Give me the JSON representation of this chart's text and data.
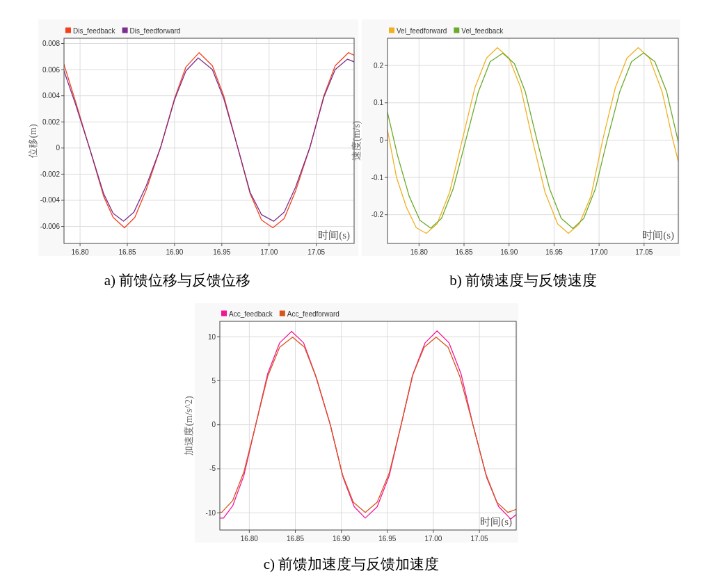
{
  "chart_data": [
    {
      "type": "line",
      "title": "a)  前馈位移与反馈位移",
      "xlabel": "时间(s)",
      "ylabel": "位移(m)",
      "xlim": [
        16.783,
        17.09
      ],
      "ylim": [
        -0.0073,
        0.0084
      ],
      "xticks": [
        {
          "value": 16.8,
          "label": "16.80"
        },
        {
          "value": 16.85,
          "label": "16.85"
        },
        {
          "value": 16.9,
          "label": "16.90"
        },
        {
          "value": 16.95,
          "label": "16.95"
        },
        {
          "value": 17.0,
          "label": "17.00"
        },
        {
          "value": 17.05,
          "label": "17.05"
        }
      ],
      "yticks": [
        -0.006,
        -0.004,
        -0.002,
        0,
        0.002,
        0.004,
        0.006,
        0.008
      ],
      "grid": true,
      "legend": "top left",
      "marker": "none",
      "line_style": "solid",
      "series": [
        {
          "name": "Dis_feedback",
          "color": "#f4401c",
          "x": [
            16.783,
            16.795,
            16.81,
            16.825,
            16.835,
            16.847,
            16.858,
            16.87,
            16.885,
            16.9,
            16.912,
            16.926,
            16.94,
            16.952,
            16.967,
            16.98,
            16.992,
            17.004,
            17.016,
            17.028,
            17.043,
            17.058,
            17.07,
            17.084,
            17.09
          ],
          "values": [
            0.0064,
            0.0036,
            0,
            -0.0037,
            -0.0053,
            -0.0061,
            -0.0053,
            -0.0032,
            0,
            0.0038,
            0.0062,
            0.0073,
            0.0063,
            0.004,
            0,
            -0.0035,
            -0.0055,
            -0.0061,
            -0.0054,
            -0.0033,
            0,
            0.004,
            0.0063,
            0.0073,
            0.0071
          ]
        },
        {
          "name": "Dis_feedforward",
          "color": "#7b2e8e",
          "x": [
            16.783,
            16.795,
            16.81,
            16.825,
            16.835,
            16.846,
            16.857,
            16.87,
            16.885,
            16.9,
            16.912,
            16.925,
            16.94,
            16.952,
            16.967,
            16.98,
            16.992,
            17.005,
            17.016,
            17.028,
            17.043,
            17.058,
            17.07,
            17.083,
            17.09
          ],
          "values": [
            0.0059,
            0.0034,
            0,
            -0.0035,
            -0.005,
            -0.0056,
            -0.0049,
            -0.0029,
            0,
            0.0037,
            0.0059,
            0.0069,
            0.006,
            0.0038,
            0,
            -0.0034,
            -0.0051,
            -0.0056,
            -0.0049,
            -0.003,
            0,
            0.0039,
            0.006,
            0.0068,
            0.0066
          ]
        }
      ]
    },
    {
      "type": "line",
      "title": "b)  前馈速度与反馈速度",
      "xlabel": "时间(s)",
      "ylabel": "速度(m/s)",
      "xlim": [
        16.765,
        17.088
      ],
      "ylim": [
        -0.277,
        0.273
      ],
      "xticks": [
        {
          "value": 16.8,
          "label": "16.80"
        },
        {
          "value": 16.85,
          "label": "16.85"
        },
        {
          "value": 16.9,
          "label": "16.90"
        },
        {
          "value": 16.95,
          "label": "16.95"
        },
        {
          "value": 17.0,
          "label": "17.00"
        },
        {
          "value": 17.05,
          "label": "17.05"
        }
      ],
      "yticks": [
        -0.2,
        -0.1,
        0,
        0.1,
        0.2
      ],
      "grid": true,
      "legend": "top left",
      "marker": "none",
      "line_style": "solid",
      "series": [
        {
          "name": "Vel_feedforward",
          "color": "#f0b020",
          "x": [
            16.765,
            16.775,
            16.786,
            16.797,
            16.808,
            16.82,
            16.834,
            16.848,
            16.862,
            16.875,
            16.887,
            16.9,
            16.913,
            16.926,
            16.94,
            16.954,
            16.966,
            16.978,
            16.991,
            17.004,
            17.018,
            17.031,
            17.0435,
            17.056,
            17.07,
            17.082,
            17.088
          ],
          "values": [
            0.027,
            -0.1,
            -0.18,
            -0.235,
            -0.25,
            -0.225,
            -0.14,
            0,
            0.14,
            0.22,
            0.248,
            0.22,
            0.14,
            0,
            -0.14,
            -0.225,
            -0.25,
            -0.225,
            -0.15,
            0,
            0.14,
            0.22,
            0.248,
            0.22,
            0.13,
            0,
            -0.057
          ]
        },
        {
          "name": "Vel_feedback",
          "color": "#6aaa2a",
          "x": [
            16.765,
            16.776,
            16.789,
            16.801,
            16.813,
            16.825,
            16.838,
            16.852,
            16.866,
            16.879,
            16.893,
            16.906,
            16.918,
            16.931,
            16.945,
            16.958,
            16.971,
            16.983,
            16.996,
            17.009,
            17.023,
            17.036,
            17.0495,
            17.062,
            17.075,
            17.088
          ],
          "values": [
            0.074,
            -0.04,
            -0.15,
            -0.215,
            -0.236,
            -0.21,
            -0.13,
            0,
            0.13,
            0.21,
            0.233,
            0.205,
            0.13,
            0,
            -0.13,
            -0.21,
            -0.237,
            -0.21,
            -0.13,
            0,
            0.13,
            0.21,
            0.234,
            0.21,
            0.13,
            -0.005
          ]
        }
      ]
    },
    {
      "type": "line",
      "title": "c)  前馈加速度与反馈加速度",
      "xlabel": "时间(s)",
      "ylabel": "加速度(m/s^2)",
      "xlim": [
        16.768,
        17.09
      ],
      "ylim": [
        -11.95,
        11.74
      ],
      "xticks": [
        {
          "value": 16.8,
          "label": "16.80"
        },
        {
          "value": 16.85,
          "label": "16.85"
        },
        {
          "value": 16.9,
          "label": "16.90"
        },
        {
          "value": 16.95,
          "label": "16.95"
        },
        {
          "value": 17.0,
          "label": "17.00"
        },
        {
          "value": 17.05,
          "label": "17.05"
        }
      ],
      "yticks": [
        -10,
        -5,
        0,
        5,
        10
      ],
      "grid": true,
      "legend": "top left",
      "marker": "none",
      "line_style": "solid",
      "series": [
        {
          "name": "Acc_feedback",
          "color": "#f0169a",
          "x": [
            16.768,
            16.772,
            16.782,
            16.794,
            16.807,
            16.82,
            16.833,
            16.846,
            16.859,
            16.872,
            16.888,
            16.902,
            16.914,
            16.926,
            16.939,
            16.952,
            16.965,
            16.978,
            16.991,
            17.004,
            17.017,
            17.03,
            17.043,
            17.058,
            17.071,
            17.084,
            17.09
          ],
          "values": [
            -10.6,
            -10.6,
            -9.2,
            -5.8,
            0,
            5.8,
            9.3,
            10.6,
            9.3,
            5.6,
            0,
            -6,
            -9.3,
            -10.6,
            -9.3,
            -5.8,
            0,
            5.8,
            9.3,
            10.65,
            9.3,
            5.8,
            0,
            -6,
            -9.3,
            -10.7,
            -10.2
          ]
        },
        {
          "name": "Acc_feedforward",
          "color": "#d9541c",
          "x": [
            16.768,
            16.77,
            16.782,
            16.794,
            16.807,
            16.82,
            16.833,
            16.847,
            16.86,
            16.873,
            16.888,
            16.901,
            16.913,
            16.926,
            16.939,
            16.952,
            16.965,
            16.977,
            16.99,
            17.003,
            17.016,
            17.029,
            17.043,
            17.057,
            17.069,
            17.081,
            17.09
          ],
          "values": [
            -9.92,
            -9.95,
            -8.6,
            -5.4,
            0,
            5.5,
            8.8,
            9.95,
            8.8,
            5.3,
            0,
            -5.6,
            -8.8,
            -9.95,
            -8.8,
            -5.5,
            0,
            5.5,
            8.8,
            9.95,
            8.8,
            5.4,
            0,
            -5.6,
            -8.8,
            -9.95,
            -9.6
          ]
        }
      ]
    }
  ]
}
